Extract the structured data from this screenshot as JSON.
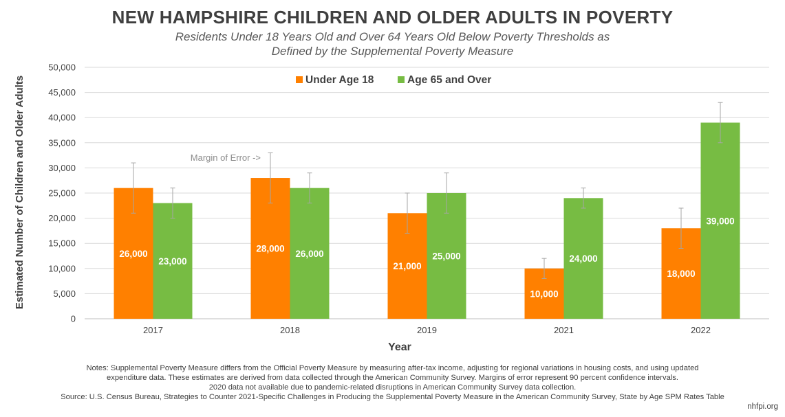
{
  "title": "NEW HAMPSHIRE CHILDREN AND OLDER ADULTS IN POVERTY",
  "subtitle_line1": "Residents Under 18 Years Old and Over 64 Years Old Below Poverty Thresholds as",
  "subtitle_line2": "Defined by the Supplemental Poverty Measure",
  "annotation": "Margin of Error ->",
  "notes": [
    "Notes: Supplemental Poverty Measure differs from the Official Poverty Measure by measuring after-tax income, adjusting for regional variations in housing costs, and using updated",
    "expenditure data. These estimates are derived from data collected through the American Community Survey. Margins of error represent 90 percent confidence intervals.",
    "2020 data not available due to pandemic-related disruptions in American Community Survey data collection."
  ],
  "source": "Source: U.S. Census Bureau, Strategies to Counter 2021-Specific Challenges in Producing the Supplemental Poverty Measure in the American Community Survey, State by Age SPM Rates Table",
  "credit": "nhfpi.org",
  "chart_data": {
    "type": "bar",
    "title": "NEW HAMPSHIRE CHILDREN AND OLDER ADULTS IN POVERTY",
    "xlabel": "Year",
    "ylabel": "Estimated Number of Children and Older Adults",
    "categories": [
      "2017",
      "2018",
      "2019",
      "2021",
      "2022"
    ],
    "ylim": [
      0,
      50000
    ],
    "yticks": [
      0,
      5000,
      10000,
      15000,
      20000,
      25000,
      30000,
      35000,
      40000,
      45000,
      50000
    ],
    "ytick_labels": [
      "0",
      "5,000",
      "10,000",
      "15,000",
      "20,000",
      "25,000",
      "30,000",
      "35,000",
      "40,000",
      "45,000",
      "50,000"
    ],
    "grid": true,
    "legend_position": "top-center",
    "series": [
      {
        "name": "Under Age 18",
        "color": "#ff8000",
        "values": [
          26000,
          28000,
          21000,
          10000,
          18000
        ],
        "labels": [
          "26,000",
          "28,000",
          "21,000",
          "10,000",
          "18,000"
        ],
        "error_low": [
          21000,
          23000,
          17000,
          8000,
          14000
        ],
        "error_high": [
          31000,
          33000,
          25000,
          12000,
          22000
        ]
      },
      {
        "name": "Age 65 and Over",
        "color": "#77bc43",
        "values": [
          23000,
          26000,
          25000,
          24000,
          39000
        ],
        "labels": [
          "23,000",
          "26,000",
          "25,000",
          "24,000",
          "39,000"
        ],
        "error_low": [
          20000,
          23000,
          21000,
          22000,
          35000
        ],
        "error_high": [
          26000,
          29000,
          29000,
          26000,
          43000
        ]
      }
    ]
  }
}
